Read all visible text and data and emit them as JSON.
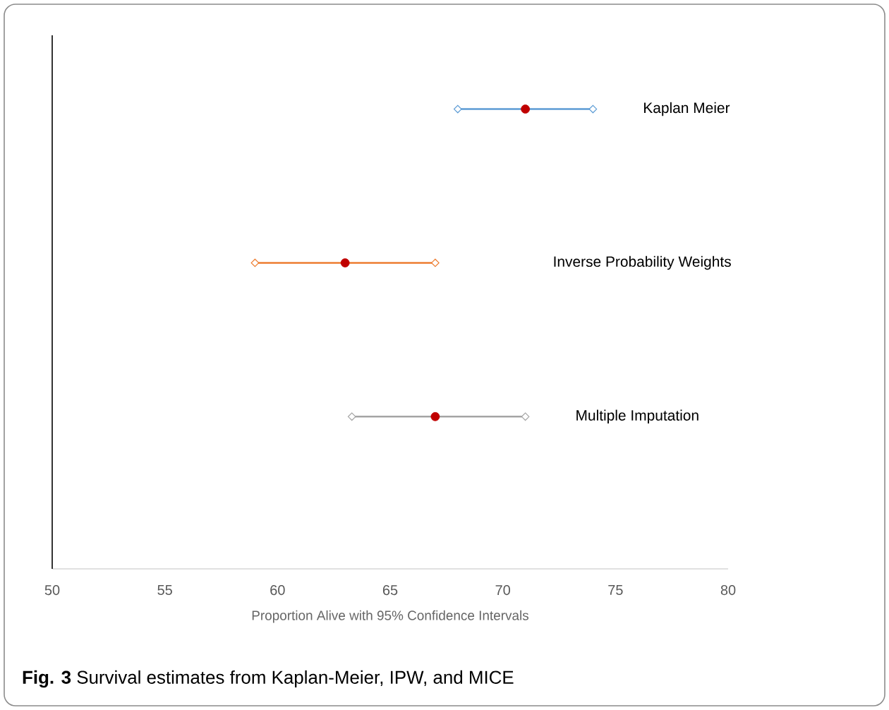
{
  "chart_data": {
    "type": "scatter",
    "orientation": "horizontal",
    "title": "**Fig. 3** Survival estimates from Kaplan-Meier, IPW, and MICE",
    "xlabel": "Proportion Alive with 95% Confidence Intervals",
    "categories": [
      null,
      null,
      null
    ],
    "series": [
      {
        "name": "Kaplan Meier",
        "color": "#5b9bd5",
        "colors": [
          "#c00000",
          null,
          null
        ],
        "values": [
          71,
          null,
          null
        ],
        "errors": [
          [
            68,
            74
          ],
          null,
          null
        ]
      },
      {
        "name": "Inverse Probability Weights",
        "color": "#ed7d31",
        "colors": [
          null,
          "#c00000",
          null
        ],
        "values": [
          null,
          63,
          null
        ],
        "errors": [
          null,
          [
            59,
            67
          ],
          null
        ]
      },
      {
        "name": "Multiple Imputation",
        "color": "#a5a5a5",
        "colors": [
          null,
          null,
          "#c00000"
        ],
        "values": [
          null,
          null,
          67
        ],
        "errors": [
          null,
          null,
          [
            63.3,
            71
          ]
        ]
      }
    ],
    "grid": false,
    "legend": false,
    "xlim": [
      50,
      80
    ],
    "xticks": [
      50,
      55,
      60,
      65,
      70,
      75,
      80
    ]
  }
}
